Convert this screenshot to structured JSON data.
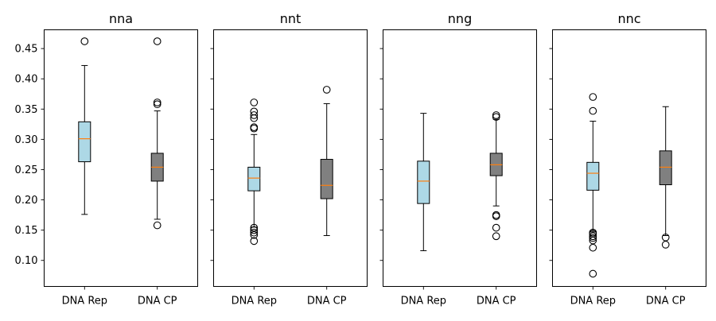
{
  "chart_data": {
    "type": "box",
    "shared_y": true,
    "ylim": [
      0.057,
      0.481
    ],
    "y_ticks": [
      0.1,
      0.15,
      0.2,
      0.25,
      0.3,
      0.35,
      0.4,
      0.45
    ],
    "y_tick_labels": [
      "0.10",
      "0.15",
      "0.20",
      "0.25",
      "0.30",
      "0.35",
      "0.40",
      "0.45"
    ],
    "categories": [
      "DNA Rep",
      "DNA CP"
    ],
    "colors": {
      "DNA Rep": "#add8e6",
      "DNA CP": "#808080",
      "median": "#ff7f0e"
    },
    "panels": [
      {
        "title": "nna",
        "boxes": [
          {
            "category": "DNA Rep",
            "whisker_low": 0.176,
            "q1": 0.263,
            "median": 0.301,
            "q3": 0.329,
            "whisker_high": 0.422,
            "outliers": [
              0.462
            ]
          },
          {
            "category": "DNA CP",
            "whisker_low": 0.168,
            "q1": 0.231,
            "median": 0.254,
            "q3": 0.277,
            "whisker_high": 0.347,
            "outliers": [
              0.158,
              0.358,
              0.361,
              0.462
            ]
          }
        ]
      },
      {
        "title": "nnt",
        "boxes": [
          {
            "category": "DNA Rep",
            "whisker_low": 0.155,
            "q1": 0.215,
            "median": 0.236,
            "q3": 0.254,
            "whisker_high": 0.308,
            "outliers": [
              0.132,
              0.142,
              0.146,
              0.15,
              0.154,
              0.318,
              0.32,
              0.335,
              0.34,
              0.346,
              0.361
            ]
          },
          {
            "category": "DNA CP",
            "whisker_low": 0.141,
            "q1": 0.202,
            "median": 0.224,
            "q3": 0.267,
            "whisker_high": 0.359,
            "outliers": [
              0.382
            ]
          }
        ]
      },
      {
        "title": "nng",
        "boxes": [
          {
            "category": "DNA Rep",
            "whisker_low": 0.116,
            "q1": 0.194,
            "median": 0.231,
            "q3": 0.264,
            "whisker_high": 0.343,
            "outliers": []
          },
          {
            "category": "DNA CP",
            "whisker_low": 0.19,
            "q1": 0.24,
            "median": 0.258,
            "q3": 0.277,
            "whisker_high": 0.333,
            "outliers": [
              0.14,
              0.154,
              0.173,
              0.175,
              0.337,
              0.34
            ]
          }
        ]
      },
      {
        "title": "nnc",
        "boxes": [
          {
            "category": "DNA Rep",
            "whisker_low": 0.147,
            "q1": 0.216,
            "median": 0.244,
            "q3": 0.262,
            "whisker_high": 0.33,
            "outliers": [
              0.078,
              0.121,
              0.133,
              0.137,
              0.14,
              0.144,
              0.146,
              0.347,
              0.37
            ]
          },
          {
            "category": "DNA CP",
            "whisker_low": 0.141,
            "q1": 0.225,
            "median": 0.254,
            "q3": 0.281,
            "whisker_high": 0.354,
            "outliers": [
              0.126,
              0.138
            ]
          }
        ]
      }
    ]
  }
}
